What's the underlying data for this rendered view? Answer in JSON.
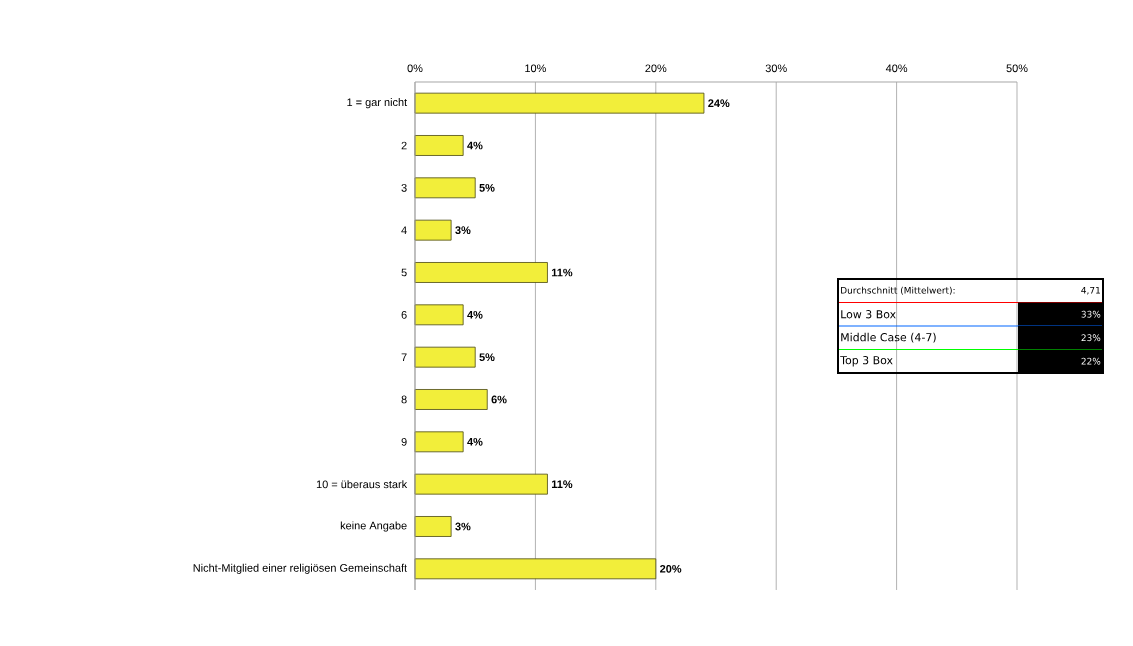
{
  "chart_data": {
    "type": "bar",
    "orientation": "horizontal",
    "categories": [
      "1 = gar nicht",
      "2",
      "3",
      "4",
      "5",
      "6",
      "7",
      "8",
      "9",
      "10 = überaus stark",
      "keine Angabe",
      "Nicht-Mitglied einer religiösen Gemeinschaft"
    ],
    "values": [
      24,
      4,
      5,
      3,
      11,
      4,
      5,
      6,
      4,
      11,
      3,
      20
    ],
    "value_labels": [
      "24%",
      "4%",
      "5%",
      "3%",
      "11%",
      "4%",
      "5%",
      "6%",
      "4%",
      "11%",
      "3%",
      "20%"
    ],
    "color": "#f2ee3a",
    "xlim": [
      0,
      50
    ],
    "xticks": [
      {
        "value": 0,
        "label": "0%"
      },
      {
        "value": 10,
        "label": "10%"
      },
      {
        "value": 20,
        "label": "20%"
      },
      {
        "value": 30,
        "label": "30%"
      },
      {
        "value": 40,
        "label": "40%"
      },
      {
        "value": 50,
        "label": "50%"
      }
    ],
    "grid": "x",
    "annotations": [
      "Durchschnitt (Mittelwert):",
      "4,71",
      "Low 3 Box",
      "33%",
      "Middle Case (4-7)",
      "23%",
      "Top 3 Box",
      "22%"
    ]
  }
}
